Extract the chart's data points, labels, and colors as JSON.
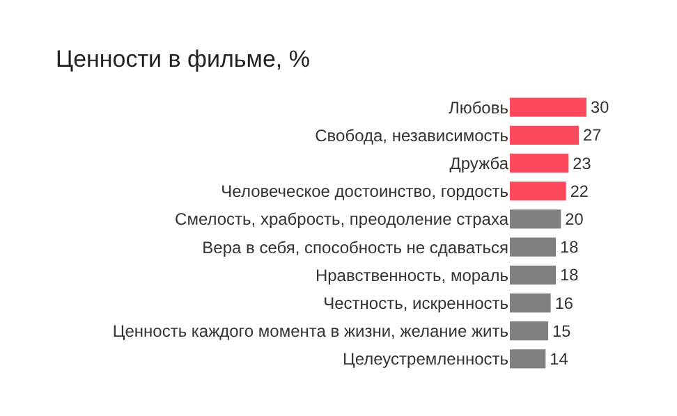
{
  "chart_data": {
    "type": "bar",
    "orientation": "horizontal",
    "title": "Ценности в фильме, %",
    "categories": [
      "Любовь",
      "Свобода, независимость",
      "Дружба",
      "Человеческое достоинство, гордость",
      "Смелость, храбрость, преодоление страха",
      "Вера в себя, способность не сдаваться",
      "Нравственность, мораль",
      "Честность, искренность",
      "Ценность каждого момента в жизни, желание жить",
      "Целеустремленность"
    ],
    "values": [
      30,
      27,
      23,
      22,
      20,
      18,
      18,
      16,
      15,
      14
    ],
    "colors": [
      "#ff4a5e",
      "#ff4a5e",
      "#ff4a5e",
      "#ff4a5e",
      "#808080",
      "#808080",
      "#808080",
      "#808080",
      "#808080",
      "#808080"
    ],
    "xlim": [
      0,
      30
    ],
    "data_labels": true
  }
}
